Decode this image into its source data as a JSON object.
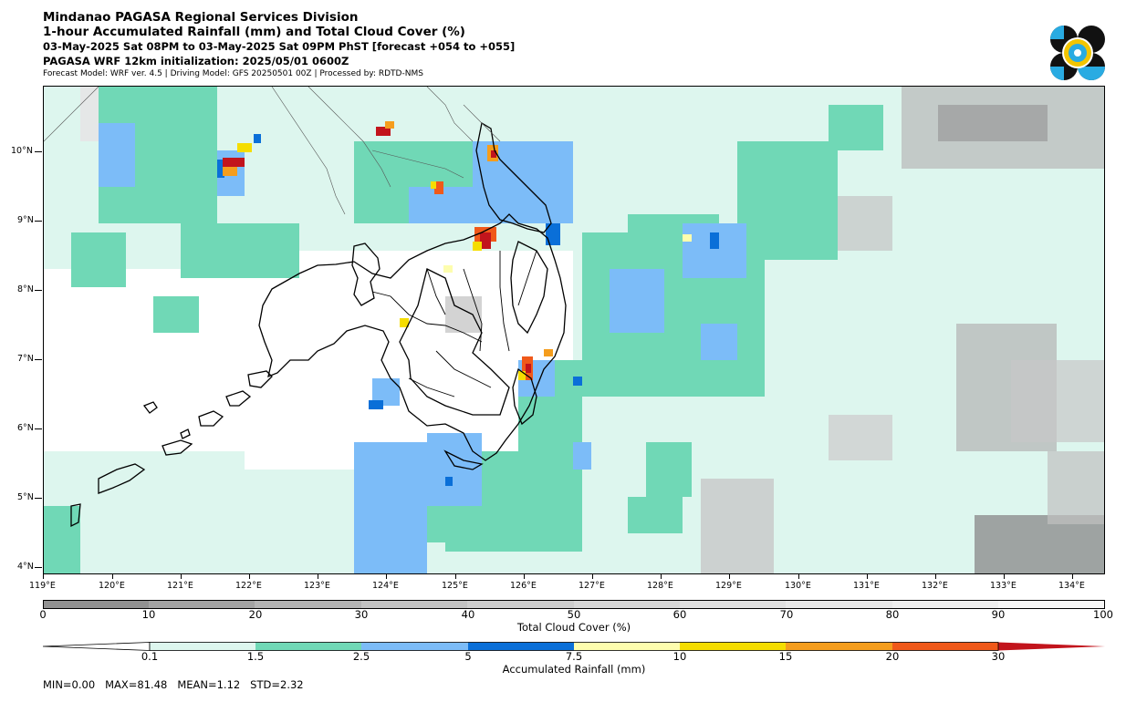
{
  "header": {
    "line1": "Mindanao PAGASA Regional Services Division",
    "line2": "1-hour Accumulated Rainfall (mm) and Total Cloud Cover (%)",
    "line3": "03-May-2025 Sat 08PM to 03-May-2025 Sat 09PM PhST [forecast +054 to +055]",
    "line4": "PAGASA WRF 12km initialization: 2025/05/01 0600Z",
    "line5": "Forecast Model: WRF ver. 4.5 | Driving Model: GFS 20250501 00Z | Processed by: RDTD-NMS"
  },
  "logo": {
    "icon": "pagasa-seal-icon",
    "colors": [
      "#000000",
      "#29abe2",
      "#f2c500"
    ]
  },
  "map": {
    "lat_labels": [
      "10°N",
      "9°N",
      "8°N",
      "7°N",
      "6°N",
      "5°N",
      "4°N"
    ],
    "lon_labels": [
      "119°E",
      "120°E",
      "121°E",
      "122°E",
      "123°E",
      "124°E",
      "125°E",
      "126°E",
      "127°E",
      "128°E",
      "129°E",
      "130°E",
      "131°E",
      "132°E",
      "133°E",
      "134°E"
    ]
  },
  "cloud_bar": {
    "label": "Total Cloud Cover (%)",
    "ticks": [
      "0",
      "10",
      "20",
      "30",
      "40",
      "50",
      "60",
      "70",
      "80",
      "90",
      "100"
    ],
    "colors": [
      "#919191",
      "#a3a3a3",
      "#b4b4b4",
      "#c2c2c2",
      "#cdcdcd",
      "#d7d7d7",
      "#e0e0e0",
      "#e8e8e8",
      "#efefef",
      "#f7f7f7"
    ]
  },
  "rain_bar": {
    "label": "Accumulated Rainfall (mm)",
    "ticks": [
      "0.1",
      "1.5",
      "2.5",
      "5",
      "7.5",
      "10",
      "15",
      "20",
      "30"
    ],
    "colors": [
      "#ddf6ee",
      "#70d8b6",
      "#7cbcf8",
      "#0a6fd8",
      "#fdfdae",
      "#f5dd00",
      "#f59d1d",
      "#f0591a",
      "#c2141c"
    ]
  },
  "stats": "MIN=0.00   MAX=81.48   MEAN=1.12   STD=2.32"
}
